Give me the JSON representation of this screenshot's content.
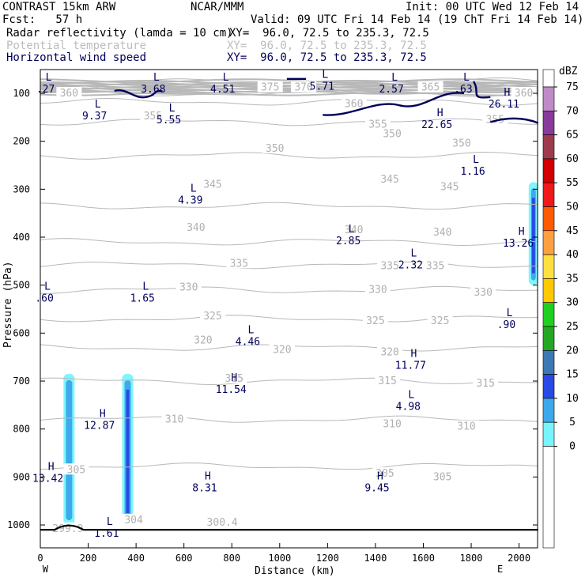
{
  "header": {
    "model": "CONTRAST 15km ARW",
    "org": "NCAR/MMM",
    "init": "Init: 00 UTC Wed 12 Feb 14",
    "fcst": "Fcst:   57 h",
    "valid": "Valid: 09 UTC Fri 14 Feb 14 (19 ChT Fri 14 Feb 14)",
    "fields": [
      {
        "name": "Radar reflectivity (lamda = 10 cm)",
        "xy": "XY=  96.0, 72.5 to 235.3, 72.5",
        "color": "#000000"
      },
      {
        "name": "Potential temperature",
        "xy": "XY=  96.0, 72.5 to 235.3, 72.5",
        "color": "#bdbdbd"
      },
      {
        "name": "Horizontal wind speed",
        "xy": "XY=  96.0, 72.5 to 235.3, 72.5",
        "color": "#00005a"
      }
    ]
  },
  "chart_data": {
    "type": "cross-section",
    "xlabel": "Distance (km)",
    "ylabel": "Pressure (hPa)",
    "xlim": [
      0,
      2080
    ],
    "ylim": [
      1050,
      70
    ],
    "x_ticks": [
      "0",
      "200",
      "400",
      "600",
      "800",
      "1000",
      "1200",
      "1400",
      "1600",
      "1800",
      "2000"
    ],
    "x_tick_values": [
      0,
      200,
      400,
      600,
      800,
      1000,
      1200,
      1400,
      1600,
      1800,
      2000
    ],
    "y_ticks": [
      "100",
      "200",
      "300",
      "400",
      "500",
      "600",
      "700",
      "800",
      "900",
      "1000"
    ],
    "y_tick_values": [
      100,
      200,
      300,
      400,
      500,
      600,
      700,
      800,
      900,
      1000
    ],
    "endpoint_labels": [
      {
        "text": "W",
        "x": 120
      },
      {
        "text": "E",
        "x": 2020
      }
    ],
    "colorbar": {
      "unit": "dBZ",
      "levels": [
        "75",
        "70",
        "65",
        "60",
        "55",
        "50",
        "45",
        "40",
        "35",
        "30",
        "25",
        "20",
        "15",
        "10",
        "5",
        "0"
      ],
      "colors": [
        "#ffffff",
        "#c08ac8",
        "#8a3a9a",
        "#9e3c4c",
        "#d20000",
        "#f01818",
        "#ff5a00",
        "#ffa040",
        "#ffe040",
        "#ffc800",
        "#20d020",
        "#24a824",
        "#3c78b4",
        "#2848e8",
        "#3ca8ec",
        "#78f4fc",
        "#ffffff"
      ]
    },
    "theta_contours": [
      {
        "label": "300",
        "p": 1000
      },
      {
        "label": "305",
        "p": 878
      },
      {
        "label": "310",
        "p": 780
      },
      {
        "label": "315",
        "p": 700
      },
      {
        "label": "320",
        "p": 630
      },
      {
        "label": "325",
        "p": 570
      },
      {
        "label": "330",
        "p": 510
      },
      {
        "label": "335",
        "p": 458
      },
      {
        "label": "340",
        "p": 410
      },
      {
        "label": "345",
        "p": 335
      },
      {
        "label": "350",
        "p": 230
      },
      {
        "label": "355",
        "p": 160
      },
      {
        "label": "360",
        "p": 118
      },
      {
        "label": "365",
        "p": 100
      },
      {
        "label": "370",
        "p": 85
      },
      {
        "label": "375",
        "p": 75
      }
    ],
    "theta_labels": [
      {
        "text": "300.4",
        "x": 760,
        "p": 995
      },
      {
        "text": "299.9",
        "x": 115,
        "p": 1008
      },
      {
        "text": "304",
        "x": 390,
        "p": 990
      },
      {
        "text": "305",
        "x": 150,
        "p": 885
      },
      {
        "text": "305",
        "x": 1440,
        "p": 893
      },
      {
        "text": "305",
        "x": 1680,
        "p": 900
      },
      {
        "text": "310",
        "x": 560,
        "p": 780
      },
      {
        "text": "310",
        "x": 1470,
        "p": 790
      },
      {
        "text": "310",
        "x": 1780,
        "p": 795
      },
      {
        "text": "315",
        "x": 810,
        "p": 695
      },
      {
        "text": "315",
        "x": 1450,
        "p": 700
      },
      {
        "text": "315",
        "x": 1860,
        "p": 705
      },
      {
        "text": "320",
        "x": 680,
        "p": 615
      },
      {
        "text": "320",
        "x": 1010,
        "p": 635
      },
      {
        "text": "320",
        "x": 1460,
        "p": 640
      },
      {
        "text": "325",
        "x": 720,
        "p": 565
      },
      {
        "text": "325",
        "x": 1400,
        "p": 575
      },
      {
        "text": "325",
        "x": 1670,
        "p": 575
      },
      {
        "text": "330",
        "x": 620,
        "p": 505
      },
      {
        "text": "330",
        "x": 1410,
        "p": 510
      },
      {
        "text": "330",
        "x": 1850,
        "p": 515
      },
      {
        "text": "335",
        "x": 830,
        "p": 455
      },
      {
        "text": "335",
        "x": 1460,
        "p": 460
      },
      {
        "text": "335",
        "x": 1650,
        "p": 460
      },
      {
        "text": "340",
        "x": 650,
        "p": 380
      },
      {
        "text": "340",
        "x": 1310,
        "p": 385
      },
      {
        "text": "340",
        "x": 1680,
        "p": 390
      },
      {
        "text": "345",
        "x": 720,
        "p": 290
      },
      {
        "text": "345",
        "x": 1460,
        "p": 280
      },
      {
        "text": "345",
        "x": 1710,
        "p": 295
      },
      {
        "text": "350",
        "x": 980,
        "p": 215
      },
      {
        "text": "350",
        "x": 1470,
        "p": 185
      },
      {
        "text": "350",
        "x": 1760,
        "p": 205
      },
      {
        "text": "355",
        "x": 470,
        "p": 148
      },
      {
        "text": "355",
        "x": 1410,
        "p": 165
      },
      {
        "text": "355",
        "x": 1900,
        "p": 155
      },
      {
        "text": "360",
        "x": 120,
        "p": 100
      },
      {
        "text": "360",
        "x": 1310,
        "p": 122
      },
      {
        "text": "360",
        "x": 2020,
        "p": 100
      },
      {
        "text": "375",
        "x": 960,
        "p": 88
      },
      {
        "text": "370",
        "x": 1100,
        "p": 88
      },
      {
        "text": "365",
        "x": 1630,
        "p": 88
      }
    ],
    "wind_labels": [
      {
        "t": "L",
        "v": ".27",
        "x": 35,
        "p": 74
      },
      {
        "t": "L",
        "v": "3.68",
        "x": 485,
        "p": 74
      },
      {
        "t": "L",
        "v": "4.51",
        "x": 775,
        "p": 74
      },
      {
        "t": "L",
        "v": "5.71",
        "x": 1190,
        "p": 68
      },
      {
        "t": "L",
        "v": "2.57",
        "x": 1480,
        "p": 74
      },
      {
        "t": "L",
        "v": ".63",
        "x": 1780,
        "p": 74
      },
      {
        "t": "H",
        "v": "26.11",
        "x": 1950,
        "p": 105
      },
      {
        "t": "H",
        "v": "22.65",
        "x": 1670,
        "p": 148
      },
      {
        "t": "L",
        "v": "9.37",
        "x": 240,
        "p": 130
      },
      {
        "t": "L",
        "v": "5.55",
        "x": 550,
        "p": 138
      },
      {
        "t": "L",
        "v": "1.16",
        "x": 1820,
        "p": 245
      },
      {
        "t": "L",
        "v": "4.39",
        "x": 640,
        "p": 305
      },
      {
        "t": "L",
        "v": "2.85",
        "x": 1300,
        "p": 390
      },
      {
        "t": "L",
        "v": "2.32",
        "x": 1560,
        "p": 440
      },
      {
        "t": "H",
        "v": "13.26",
        "x": 2010,
        "p": 395
      },
      {
        "t": "L",
        "v": ".60",
        "x": 30,
        "p": 510
      },
      {
        "t": "L",
        "v": "1.65",
        "x": 440,
        "p": 510
      },
      {
        "t": "L",
        "v": ".90",
        "x": 1960,
        "p": 565
      },
      {
        "t": "L",
        "v": "4.46",
        "x": 880,
        "p": 600
      },
      {
        "t": "H",
        "v": "11.77",
        "x": 1560,
        "p": 650
      },
      {
        "t": "H",
        "v": "11.54",
        "x": 810,
        "p": 700
      },
      {
        "t": "L",
        "v": "4.98",
        "x": 1550,
        "p": 735
      },
      {
        "t": "H",
        "v": "12.87",
        "x": 260,
        "p": 775
      },
      {
        "t": "H",
        "v": "13.42",
        "x": 45,
        "p": 885
      },
      {
        "t": "H",
        "v": "8.31",
        "x": 700,
        "p": 905
      },
      {
        "t": "H",
        "v": "9.45",
        "x": 1420,
        "p": 905
      },
      {
        "t": "L",
        "v": "1.61",
        "x": 290,
        "p": 1000
      }
    ],
    "reflectivity_cells": [
      {
        "x": 120,
        "p_top": 685,
        "p_bottom": 1000,
        "max_dbz": 10
      },
      {
        "x": 365,
        "p_top": 685,
        "p_bottom": 1000,
        "max_dbz": 20
      },
      {
        "x": 2060,
        "p_top": 285,
        "p_bottom": 500,
        "max_dbz": 15
      }
    ],
    "surface_pressure": 1000
  }
}
